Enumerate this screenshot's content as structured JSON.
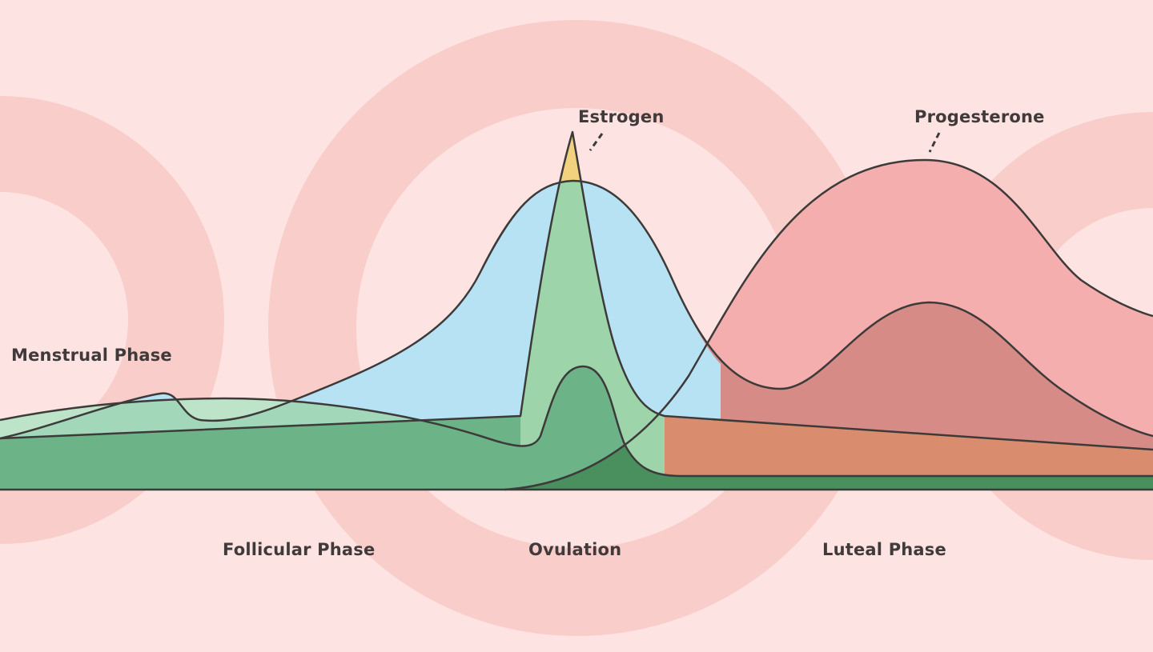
{
  "labels": {
    "estrogen": "Estrogen",
    "progesterone": "Progesterone",
    "menstrual_phase": "Menstrual Phase",
    "follicular_phase": "Follicular Phase",
    "ovulation": "Ovulation",
    "luteal_phase": "Luteal Phase"
  },
  "colors": {
    "background": "#fde4e2",
    "rings": "#f9cdca",
    "progesterone": "#f4aeae",
    "blue_hormone": "#b7e2f4",
    "overlap_rose": "#d78b87",
    "estrogen_tip": "#f2d27e",
    "spike_green": "#9dd4a9",
    "light_mint": "#bde3c8",
    "mint": "#a2d7ba",
    "green": "#6db388",
    "dark_green": "#4a8f5e",
    "orange": "#d98c6e",
    "outline": "#3d3a3a"
  }
}
